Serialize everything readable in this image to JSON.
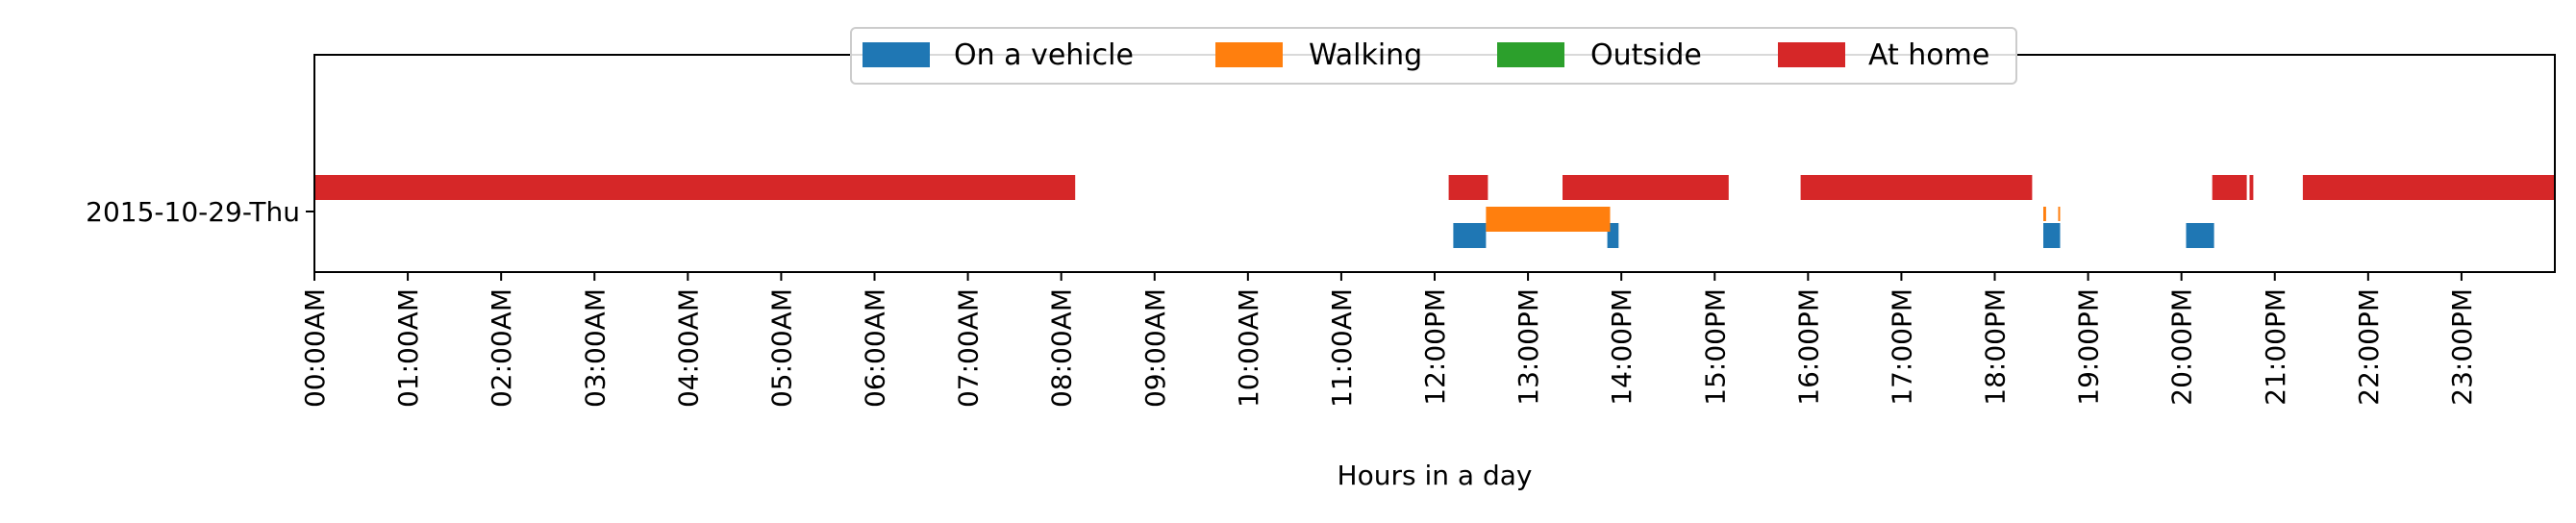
{
  "chart_data": {
    "type": "gantt",
    "xlabel": "Hours in a day",
    "x_range_hours": [
      0,
      24
    ],
    "x_ticks": [
      "00:00AM",
      "01:00AM",
      "02:00AM",
      "03:00AM",
      "04:00AM",
      "05:00AM",
      "06:00AM",
      "07:00AM",
      "08:00AM",
      "09:00AM",
      "10:00AM",
      "11:00AM",
      "12:00PM",
      "13:00PM",
      "14:00PM",
      "15:00PM",
      "16:00PM",
      "17:00PM",
      "18:00PM",
      "19:00PM",
      "20:00PM",
      "21:00PM",
      "22:00PM",
      "23:00PM"
    ],
    "categories": [
      "2015-10-29-Thu"
    ],
    "legend_position": "top-center",
    "grid": false,
    "series": [
      {
        "name": "On a vehicle",
        "color": "#1f77b4",
        "intervals": [
          [
            12.2,
            12.55
          ],
          [
            13.85,
            13.97
          ],
          [
            18.52,
            18.7
          ],
          [
            20.05,
            20.35
          ]
        ]
      },
      {
        "name": "Walking",
        "color": "#ff7f0e",
        "intervals": [
          [
            12.55,
            13.88
          ],
          [
            18.52,
            18.55
          ],
          [
            18.68,
            18.7
          ]
        ]
      },
      {
        "name": "Outside",
        "color": "#2ca02c",
        "intervals": []
      },
      {
        "name": "At home",
        "color": "#d62728",
        "intervals": [
          [
            0.0,
            8.15
          ],
          [
            12.15,
            12.57
          ],
          [
            13.37,
            15.15
          ],
          [
            15.92,
            18.4
          ],
          [
            20.33,
            20.7
          ],
          [
            20.73,
            20.77
          ],
          [
            21.3,
            24.0
          ]
        ]
      }
    ]
  }
}
